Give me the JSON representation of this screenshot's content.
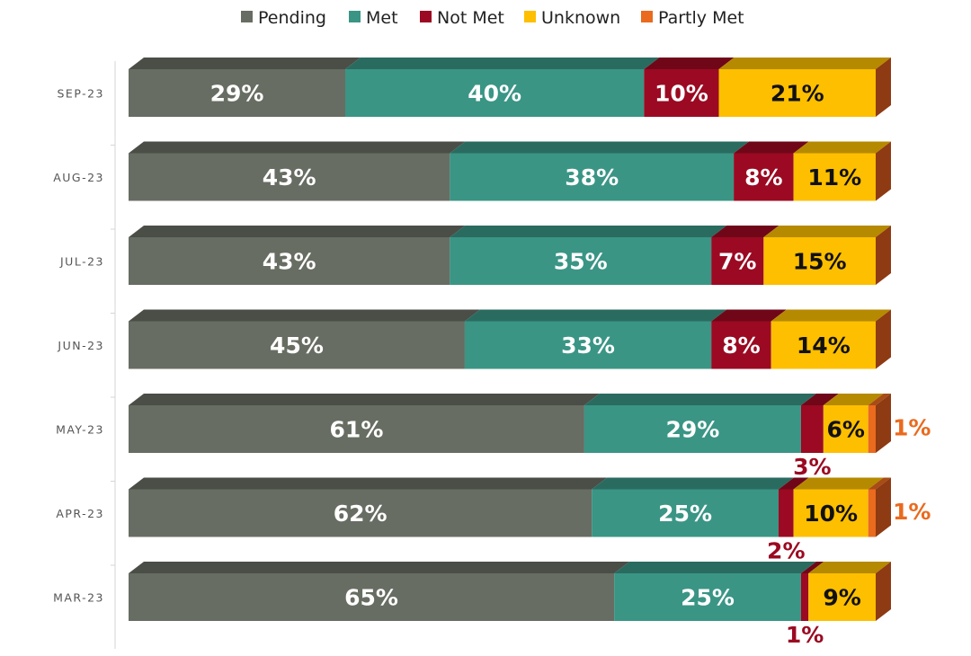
{
  "chart_data": {
    "type": "bar",
    "orientation": "horizontal",
    "stacked": true,
    "percent_scale": true,
    "legend_position": "top",
    "categories": [
      "SEP-23",
      "AUG-23",
      "JUL-23",
      "JUN-23",
      "MAY-23",
      "APR-23",
      "MAR-23"
    ],
    "series": [
      {
        "name": "Pending",
        "color": "#676d62",
        "values": [
          29,
          43,
          43,
          45,
          61,
          62,
          65
        ]
      },
      {
        "name": "Met",
        "color": "#3a9585",
        "values": [
          40,
          38,
          35,
          33,
          29,
          25,
          25
        ]
      },
      {
        "name": "Not Met",
        "color": "#9b0a22",
        "values": [
          10,
          8,
          7,
          8,
          3,
          2,
          1
        ]
      },
      {
        "name": "Unknown",
        "color": "#fdbf00",
        "values": [
          21,
          11,
          15,
          14,
          6,
          10,
          9
        ]
      },
      {
        "name": "Partly Met",
        "color": "#ea6a1e",
        "values": [
          0,
          0,
          0,
          0,
          1,
          1,
          0
        ]
      }
    ],
    "data_labels": [
      [
        "29%",
        "40%",
        "10%",
        "21%",
        ""
      ],
      [
        "43%",
        "38%",
        "8%",
        "11%",
        ""
      ],
      [
        "43%",
        "35%",
        "7%",
        "15%",
        ""
      ],
      [
        "45%",
        "33%",
        "8%",
        "14%",
        ""
      ],
      [
        "61%",
        "29%",
        "3%",
        "6%",
        "1%"
      ],
      [
        "62%",
        "25%",
        "2%",
        "10%",
        "1%"
      ],
      [
        "65%",
        "25%",
        "1%",
        "9%",
        ""
      ]
    ],
    "label_colors": [
      "#ffffff",
      "#ffffff",
      "#ffffff",
      "#111111",
      "#ea6a1e"
    ]
  }
}
